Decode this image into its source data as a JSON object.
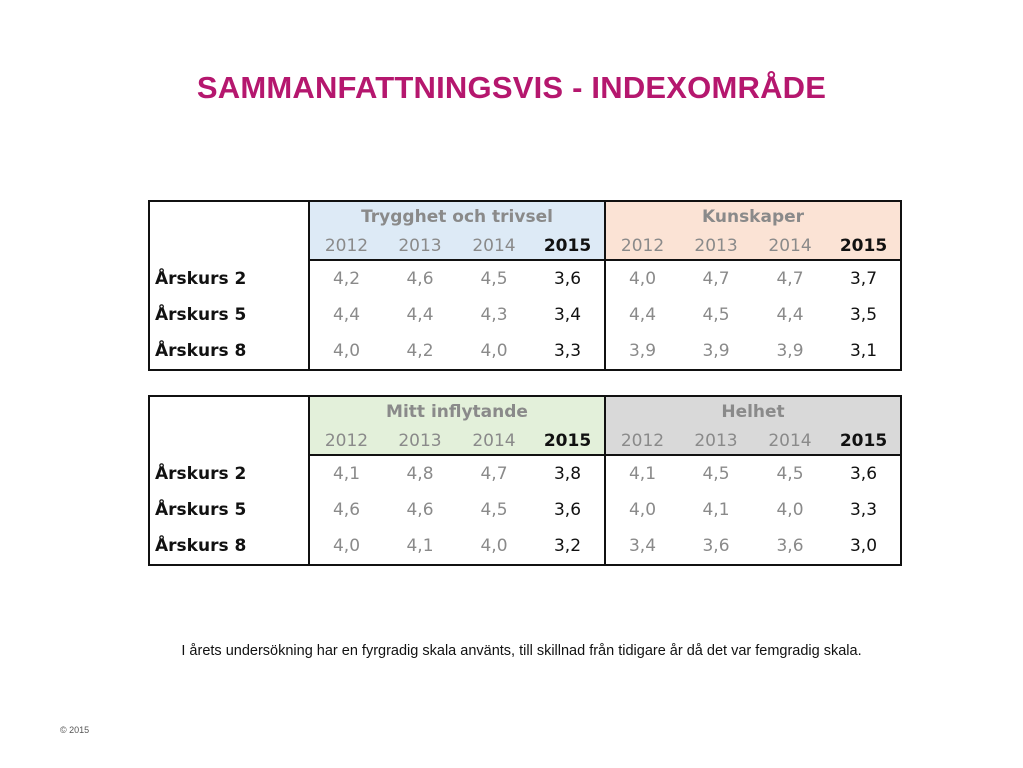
{
  "title": "SAMMANFATTNINGSVIS  - INDEXOMRÅDE",
  "colors": {
    "title": "#b5176e",
    "trygghet_bg": "#ddeaf6",
    "kunskaper_bg": "#fbe3d5",
    "inflytande_bg": "#e3f0da",
    "helhet_bg": "#d9d9d9"
  },
  "tables": [
    {
      "groups": [
        {
          "name": "Trygghet och trivsel",
          "years": [
            "2012",
            "2013",
            "2014",
            "2015"
          ]
        },
        {
          "name": "Kunskaper",
          "years": [
            "2012",
            "2013",
            "2014",
            "2015"
          ]
        }
      ],
      "rows": [
        {
          "label": "Årskurs 2",
          "values": [
            "4,2",
            "4,6",
            "4,5",
            "3,6",
            "4,0",
            "4,7",
            "4,7",
            "3,7"
          ]
        },
        {
          "label": "Årskurs 5",
          "values": [
            "4,4",
            "4,4",
            "4,3",
            "3,4",
            "4,4",
            "4,5",
            "4,4",
            "3,5"
          ]
        },
        {
          "label": "Årskurs 8",
          "values": [
            "4,0",
            "4,2",
            "4,0",
            "3,3",
            "3,9",
            "3,9",
            "3,9",
            "3,1"
          ]
        }
      ]
    },
    {
      "groups": [
        {
          "name": "Mitt inflytande",
          "years": [
            "2012",
            "2013",
            "2014",
            "2015"
          ]
        },
        {
          "name": "Helhet",
          "years": [
            "2012",
            "2013",
            "2014",
            "2015"
          ]
        }
      ],
      "rows": [
        {
          "label": "Årskurs 2",
          "values": [
            "4,1",
            "4,8",
            "4,7",
            "3,8",
            "4,1",
            "4,5",
            "4,5",
            "3,6"
          ]
        },
        {
          "label": "Årskurs 5",
          "values": [
            "4,6",
            "4,6",
            "4,5",
            "3,6",
            "4,0",
            "4,1",
            "4,0",
            "3,3"
          ]
        },
        {
          "label": "Årskurs 8",
          "values": [
            "4,0",
            "4,1",
            "4,0",
            "3,2",
            "3,4",
            "3,6",
            "3,6",
            "3,0"
          ]
        }
      ]
    }
  ],
  "note": "I årets undersökning har en fyrgradig skala använts, till skillnad från tidigare år då det var femgradig skala.",
  "copyright": "© 2015"
}
